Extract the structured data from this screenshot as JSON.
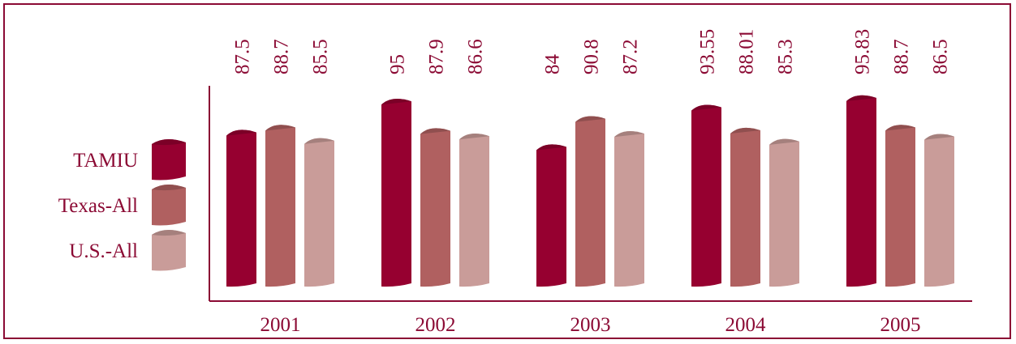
{
  "chart_data": {
    "type": "bar",
    "categories": [
      "2001",
      "2002",
      "2003",
      "2004",
      "2005"
    ],
    "series": [
      {
        "name": "TAMIU",
        "values": [
          87.5,
          95,
          84,
          93.55,
          95.83
        ],
        "labels": [
          "87.5",
          "95",
          "84",
          "93.55",
          "95.83"
        ],
        "color": "#960030"
      },
      {
        "name": "Texas-All",
        "values": [
          88.7,
          87.9,
          90.8,
          88.01,
          88.7
        ],
        "labels": [
          "88.7",
          "87.9",
          "90.8",
          "88.01",
          "88.7"
        ],
        "color": "#b06060"
      },
      {
        "name": "U.S.-All",
        "values": [
          85.5,
          86.6,
          87.2,
          85.3,
          86.5
        ],
        "labels": [
          "85.5",
          "86.6",
          "87.2",
          "85.3",
          "86.5"
        ],
        "color": "#c99c99"
      }
    ],
    "title": "",
    "xlabel": "",
    "ylabel": "",
    "ylim": [
      0,
      96
    ],
    "grid": false,
    "legend_position": "left",
    "data_labels": "rotated above columns",
    "style": "3d cylinders"
  },
  "colors": {
    "accent": "#8b0a34",
    "border": "#8b0a34",
    "background": "#ffffff"
  }
}
